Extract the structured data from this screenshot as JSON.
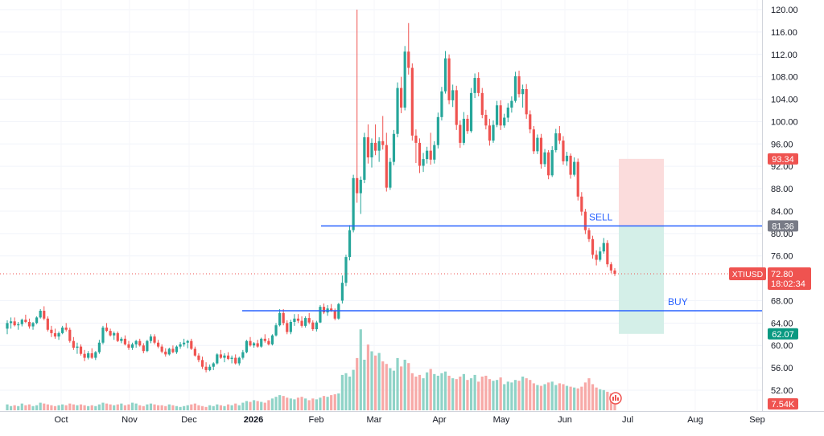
{
  "chart_data": {
    "type": "candlestick",
    "symbol": "XTIUSD",
    "last_price": "72.80",
    "countdown": "18:02:34",
    "y_ticks": [
      "120.00",
      "116.00",
      "112.00",
      "108.00",
      "104.00",
      "100.00",
      "96.00",
      "92.00",
      "88.00",
      "84.00",
      "80.00",
      "76.00",
      "68.00",
      "64.00",
      "60.00",
      "56.00",
      "52.00"
    ],
    "x_labels": [
      "Oct",
      "Nov",
      "Dec",
      "2026",
      "Feb",
      "Mar",
      "Apr",
      "May",
      "Jun",
      "Jul",
      "Aug",
      "Sep"
    ],
    "ylim": [
      48.8,
      121.5
    ],
    "levels": [
      {
        "name": "SELL",
        "price": 81.36,
        "label": "SELL",
        "tag": "81.36"
      },
      {
        "name": "BUY",
        "price": 66.2,
        "label": "BUY"
      }
    ],
    "position": {
      "stop": 93.34,
      "entry": 81.36,
      "target": 62.07,
      "stop_tag": "93.34",
      "target_tag": "62.07"
    },
    "volume_tag": "7.54K",
    "colors": {
      "up": "#26a69a",
      "down": "#ef5350",
      "line": "#2962ff",
      "up_vol": "#8fd3c7",
      "down_vol": "#f7a9a7",
      "profit_zone": "#d4efe8",
      "loss_zone": "#fbdcdc"
    },
    "candles": [
      [
        63,
        64.5,
        62,
        64
      ],
      [
        64,
        65,
        63,
        64.3
      ],
      [
        64.3,
        65,
        63.4,
        63.6
      ],
      [
        63.6,
        64.2,
        62.8,
        63.8
      ],
      [
        63.8,
        64.8,
        63.4,
        64.6
      ],
      [
        64.6,
        65.5,
        64,
        64.2
      ],
      [
        64.2,
        64.8,
        63,
        63.4
      ],
      [
        63.4,
        64.2,
        62.8,
        64
      ],
      [
        64,
        65.2,
        63.8,
        65
      ],
      [
        65,
        66.5,
        64.8,
        66.2
      ],
      [
        66.2,
        67,
        64.5,
        64.8
      ],
      [
        64.8,
        65.2,
        62.5,
        62.8
      ],
      [
        62.8,
        63.5,
        61.5,
        62.2
      ],
      [
        62.2,
        63,
        61.2,
        61.6
      ],
      [
        61.6,
        62.5,
        61,
        62.2
      ],
      [
        62.2,
        63.5,
        62,
        63.2
      ],
      [
        63.2,
        64,
        62.5,
        62.8
      ],
      [
        62.8,
        63.2,
        60.5,
        60.8
      ],
      [
        60.8,
        61.5,
        59.2,
        59.6
      ],
      [
        59.6,
        60.5,
        58.5,
        59.8
      ],
      [
        59.8,
        60.2,
        58.2,
        58.5
      ],
      [
        58.5,
        59.2,
        57.2,
        57.8
      ],
      [
        57.8,
        59,
        57.5,
        58.6
      ],
      [
        58.6,
        59.5,
        57.6,
        57.8
      ],
      [
        57.8,
        59,
        57.4,
        58.8
      ],
      [
        58.8,
        61,
        58.5,
        60.5
      ],
      [
        60.5,
        63.5,
        60.2,
        63.2
      ],
      [
        63.2,
        64,
        62.4,
        62.6
      ],
      [
        62.6,
        63,
        61.6,
        61.8
      ],
      [
        61.8,
        62.5,
        61,
        62.2
      ],
      [
        62.2,
        62.5,
        60.6,
        60.8
      ],
      [
        60.8,
        61.5,
        60.4,
        61.2
      ],
      [
        61.2,
        61.8,
        60,
        60.2
      ],
      [
        60.2,
        60.8,
        59.2,
        59.6
      ],
      [
        59.6,
        60.5,
        59.2,
        60.2
      ],
      [
        60.2,
        61,
        59.6,
        60.8
      ],
      [
        60.8,
        61.2,
        59.8,
        60
      ],
      [
        60,
        60.4,
        58.6,
        59
      ],
      [
        59,
        61,
        58.8,
        60.8
      ],
      [
        60.8,
        62,
        60.4,
        61.6
      ],
      [
        61.6,
        62,
        60.2,
        60.5
      ],
      [
        60.5,
        61,
        59.5,
        59.8
      ],
      [
        59.8,
        60.2,
        58.6,
        58.9
      ],
      [
        58.9,
        59.5,
        58,
        58.4
      ],
      [
        58.4,
        59.6,
        58.2,
        59.4
      ],
      [
        59.4,
        60,
        58.6,
        58.8
      ],
      [
        58.8,
        60,
        58.5,
        59.8
      ],
      [
        59.8,
        60.6,
        59.4,
        60.2
      ],
      [
        60.2,
        61.2,
        59.8,
        60.5
      ],
      [
        60.5,
        61,
        59.5,
        60.8
      ],
      [
        60.8,
        61.2,
        59.2,
        59.4
      ],
      [
        59.4,
        59.8,
        58,
        58.2
      ],
      [
        58.2,
        58.6,
        57,
        57.4
      ],
      [
        57.4,
        58,
        55.8,
        56.2
      ],
      [
        56.2,
        57,
        55.2,
        55.6
      ],
      [
        55.6,
        56.6,
        55.4,
        56.2
      ],
      [
        56.2,
        57,
        55.6,
        56.8
      ],
      [
        56.8,
        58.6,
        56.6,
        58.4
      ],
      [
        58.4,
        59.2,
        57.6,
        57.8
      ],
      [
        57.8,
        58.6,
        57,
        58.2
      ],
      [
        58.2,
        58.8,
        57.4,
        57.6
      ],
      [
        57.6,
        58.2,
        56.8,
        57.8
      ],
      [
        57.8,
        58.4,
        56.6,
        56.8
      ],
      [
        56.8,
        58,
        56.4,
        57.8
      ],
      [
        57.8,
        59.2,
        57.5,
        58.8
      ],
      [
        58.8,
        61,
        58.6,
        60.8
      ],
      [
        60.8,
        61.5,
        59.8,
        60
      ],
      [
        60,
        60.6,
        59.6,
        60.4
      ],
      [
        60.4,
        61,
        59.6,
        59.8
      ],
      [
        59.8,
        61.4,
        59.6,
        61.2
      ],
      [
        61.2,
        62,
        60.5,
        60.8
      ],
      [
        60.8,
        61.3,
        60,
        60.2
      ],
      [
        60.2,
        62,
        60,
        61.8
      ],
      [
        61.8,
        64,
        61.6,
        63.6
      ],
      [
        63.6,
        66.5,
        63.4,
        65.8
      ],
      [
        65.8,
        66.5,
        63.6,
        64
      ],
      [
        64,
        64.5,
        62,
        62.4
      ],
      [
        62.4,
        64.6,
        62,
        64.2
      ],
      [
        64.2,
        65.6,
        63.5,
        64.8
      ],
      [
        64.8,
        65.6,
        64,
        64.4
      ],
      [
        64.4,
        65.2,
        63.2,
        63.5
      ],
      [
        63.5,
        65.2,
        63.2,
        64.9
      ],
      [
        64.9,
        65.8,
        63.8,
        64.1
      ],
      [
        64.1,
        64.5,
        62.6,
        62.9
      ],
      [
        62.9,
        64.4,
        62.5,
        64.1
      ],
      [
        64.1,
        67.2,
        64,
        66.9
      ],
      [
        66.9,
        67.5,
        65.6,
        65.9
      ],
      [
        65.9,
        67.2,
        65.3,
        66.6
      ],
      [
        66.6,
        67.4,
        66,
        66.2
      ],
      [
        66.2,
        66.6,
        64.5,
        64.8
      ],
      [
        64.8,
        67.6,
        64.6,
        67.4
      ],
      [
        68,
        72.5,
        67.5,
        71.2
      ],
      [
        71.2,
        76.2,
        70.6,
        75.8
      ],
      [
        75.8,
        81.5,
        75.2,
        80.6
      ],
      [
        80.6,
        90.5,
        80.2,
        89.9
      ],
      [
        89.9,
        120,
        85.5,
        87.2
      ],
      [
        87.2,
        90.2,
        83.5,
        89.6
      ],
      [
        89.6,
        98,
        89,
        97.2
      ],
      [
        97.2,
        99.5,
        92.5,
        93.6
      ],
      [
        93.6,
        97,
        91.8,
        96.2
      ],
      [
        96.2,
        99.5,
        94,
        94.8
      ],
      [
        94.8,
        97.2,
        92.8,
        96.5
      ],
      [
        96.5,
        101,
        95,
        95.8
      ],
      [
        95.8,
        98,
        87.5,
        88.2
      ],
      [
        88.2,
        93.5,
        87.8,
        92.8
      ],
      [
        92.8,
        98.5,
        92.2,
        97.8
      ],
      [
        97.8,
        107,
        97.2,
        106
      ],
      [
        106,
        108,
        101.5,
        102.5
      ],
      [
        102.5,
        113.5,
        102,
        112.5
      ],
      [
        112.5,
        117.6,
        108.4,
        109.6
      ],
      [
        109.6,
        110.4,
        96.6,
        97.5
      ],
      [
        97.5,
        98.6,
        92.6,
        96.2
      ],
      [
        96.2,
        97,
        90.8,
        92.1
      ],
      [
        92.1,
        94.4,
        91,
        93.3
      ],
      [
        93.3,
        95.5,
        92.5,
        94.8
      ],
      [
        94.8,
        98,
        92.3,
        93.2
      ],
      [
        93.2,
        96.5,
        92.5,
        95.8
      ],
      [
        95.8,
        101.6,
        95.2,
        100.8
      ],
      [
        100.8,
        106.2,
        100.2,
        105.4
      ],
      [
        105.4,
        112.6,
        105,
        111.3
      ],
      [
        111.3,
        112,
        103.1,
        103.8
      ],
      [
        103.8,
        106.6,
        102.6,
        105.6
      ],
      [
        105.6,
        106.4,
        98.5,
        99.4
      ],
      [
        99.4,
        100.2,
        95.3,
        96.2
      ],
      [
        96.2,
        101.7,
        95.8,
        100.5
      ],
      [
        100.5,
        101.2,
        97.8,
        98.3
      ],
      [
        98.3,
        106,
        98,
        105.1
      ],
      [
        105.1,
        108.6,
        104.2,
        107.8
      ],
      [
        107.8,
        108.8,
        104.5,
        105.1
      ],
      [
        105.1,
        106,
        100.6,
        101.2
      ],
      [
        101.2,
        102.1,
        98.6,
        99.3
      ],
      [
        99.3,
        100.5,
        95.7,
        96.6
      ],
      [
        96.6,
        100.2,
        96.2,
        99.4
      ],
      [
        99.4,
        103.7,
        99,
        102.9
      ],
      [
        102.9,
        103.8,
        98.5,
        99.3
      ],
      [
        99.3,
        101.4,
        98.9,
        100.7
      ],
      [
        100.7,
        103.3,
        99.9,
        102.5
      ],
      [
        102.5,
        104.5,
        101.6,
        103.7
      ],
      [
        103.7,
        108.9,
        103.4,
        108.1
      ],
      [
        108.1,
        109.1,
        104.3,
        104.9
      ],
      [
        104.9,
        106.6,
        102.5,
        105.8
      ],
      [
        105.8,
        106.7,
        100.5,
        101.3
      ],
      [
        101.3,
        102,
        97.9,
        98.6
      ],
      [
        98.6,
        99.2,
        94.2,
        94.7
      ],
      [
        94.7,
        97.7,
        94.2,
        97.1
      ],
      [
        97.1,
        97.8,
        91.6,
        92.4
      ],
      [
        92.4,
        95.1,
        91.9,
        94.5
      ],
      [
        94.5,
        94.9,
        89.7,
        90.4
      ],
      [
        90.4,
        95.6,
        90.1,
        94.9
      ],
      [
        94.9,
        98.7,
        94.5,
        97.9
      ],
      [
        97.9,
        99.2,
        96,
        96.6
      ],
      [
        96.6,
        97.4,
        92.3,
        92.9
      ],
      [
        92.9,
        94.6,
        92.1,
        93.9
      ],
      [
        93.9,
        94.3,
        89.8,
        90.5
      ],
      [
        90.5,
        93.6,
        90.2,
        92.8
      ],
      [
        92.8,
        93.4,
        85.9,
        86.6
      ],
      [
        86.6,
        87.4,
        83.2,
        83.9
      ],
      [
        83.9,
        84.4,
        79.9,
        80.6
      ],
      [
        80.6,
        81,
        78.5,
        79
      ],
      [
        79,
        79.6,
        75.5,
        76.2
      ],
      [
        76.2,
        77,
        74.3,
        75.3
      ],
      [
        75.3,
        77.6,
        75,
        76.8
      ],
      [
        76.8,
        79.2,
        76.4,
        78.3
      ],
      [
        78.3,
        78.8,
        74,
        74.5
      ],
      [
        74.5,
        74.9,
        72.9,
        73.4
      ],
      [
        73.4,
        73.8,
        72.4,
        72.8
      ]
    ],
    "volume": [
      7,
      5,
      6,
      5,
      8,
      6,
      7,
      5,
      6,
      9,
      8,
      7,
      6,
      5,
      6,
      7,
      6,
      8,
      7,
      6,
      7,
      6,
      5,
      6,
      5,
      7,
      9,
      8,
      7,
      6,
      7,
      8,
      6,
      7,
      9,
      8,
      6,
      5,
      7,
      8,
      7,
      6,
      6,
      5,
      7,
      6,
      5,
      4,
      5,
      6,
      7,
      8,
      6,
      5,
      4,
      6,
      5,
      7,
      6,
      5,
      7,
      6,
      8,
      6,
      9,
      11,
      10,
      12,
      11,
      10,
      9,
      12,
      14,
      16,
      18,
      17,
      15,
      14,
      13,
      15,
      16,
      14,
      12,
      14,
      13,
      15,
      17,
      16,
      18,
      19,
      20,
      42,
      44,
      40,
      48,
      62,
      96,
      60,
      78,
      70,
      65,
      68,
      58,
      55,
      50,
      47,
      62,
      52,
      60,
      56,
      44,
      40,
      42,
      38,
      45,
      49,
      43,
      41,
      44,
      46,
      41,
      38,
      37,
      40,
      43,
      36,
      38,
      42,
      34,
      40,
      41,
      37,
      35,
      36,
      39,
      31,
      34,
      33,
      36,
      35,
      40,
      38,
      36,
      32,
      30,
      29,
      31,
      33,
      34,
      30,
      32,
      31,
      29,
      28,
      27,
      26,
      28,
      33,
      38,
      31,
      27,
      25,
      24,
      22,
      20,
      21,
      19
    ]
  }
}
